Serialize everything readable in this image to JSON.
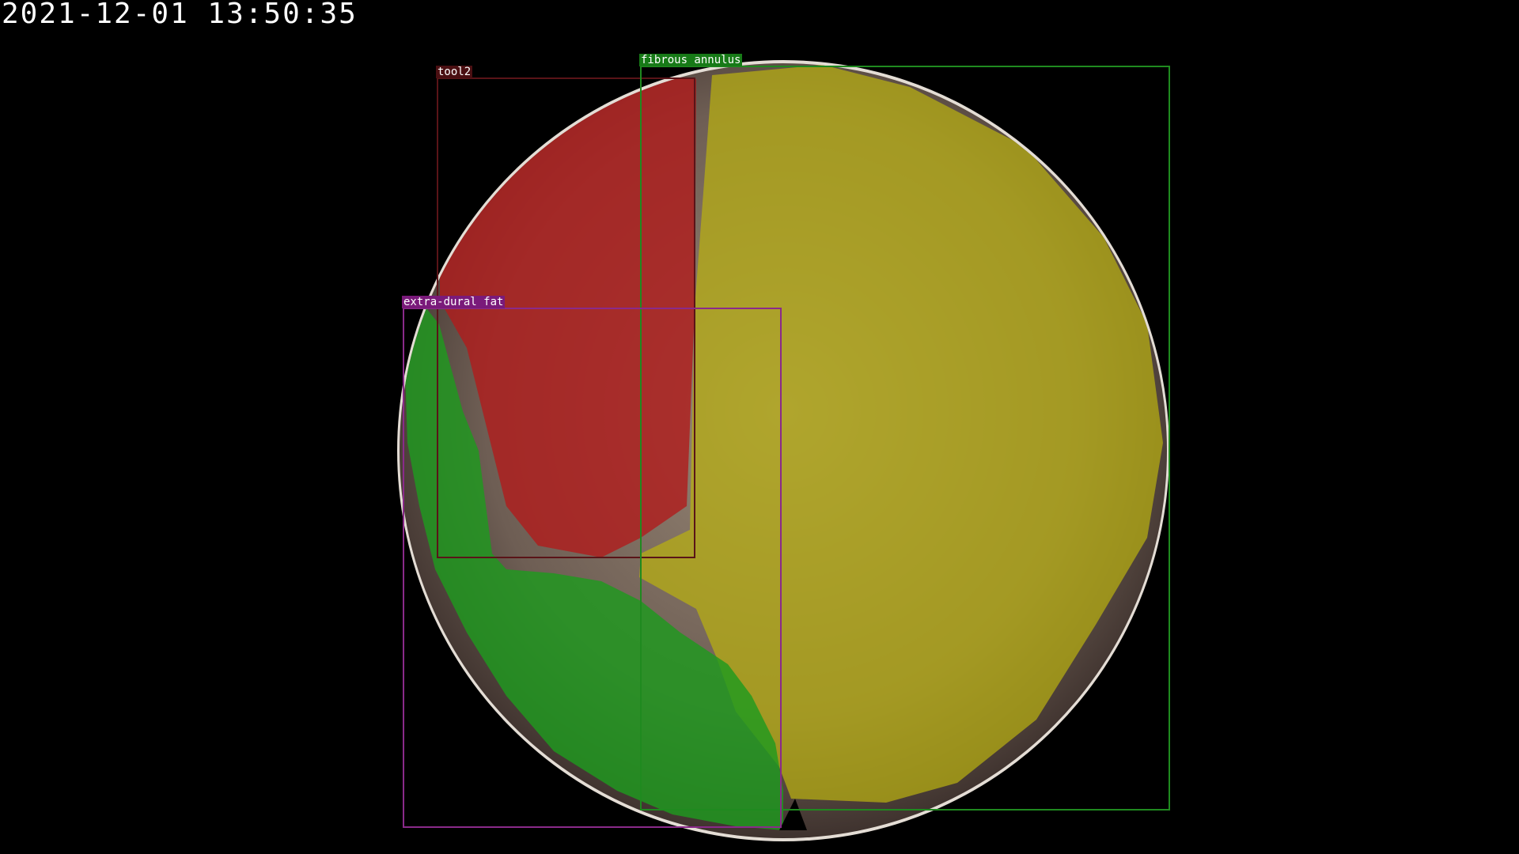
{
  "overlay": {
    "timestamp": "2021-12-01 13:50:35"
  },
  "annotations": [
    {
      "label": "tool2",
      "color": "#b01c1c",
      "box_color": "#5a1418"
    },
    {
      "label": "fibrous annulus",
      "color": "#b8b010",
      "box_color": "#1f8a1f"
    },
    {
      "label": "extra-dural fat",
      "color": "#1e9a1e",
      "box_color": "#8a2a8a"
    }
  ],
  "scene": {
    "description_colors": {
      "background": "#000000",
      "tissue": "#6e5a50",
      "rim": "#d8d0c8"
    }
  }
}
